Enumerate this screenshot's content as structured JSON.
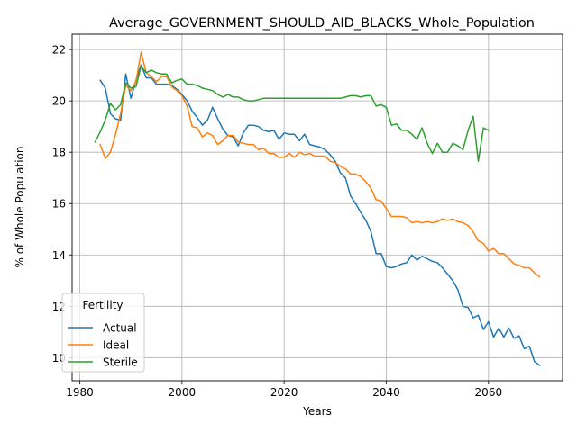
{
  "chart_data": {
    "type": "line",
    "title": "Average_GOVERNMENT_SHOULD_AID_BLACKS_Whole_Population",
    "xlabel": "Years",
    "ylabel": "% of Whole Population",
    "xlim": [
      1978.5,
      2074.5
    ],
    "ylim": [
      9.1,
      22.6
    ],
    "xticks": [
      1980,
      2000,
      2020,
      2040,
      2060
    ],
    "yticks": [
      10,
      12,
      14,
      16,
      18,
      20,
      22
    ],
    "grid": true,
    "legend": {
      "title": "Fertility",
      "placement": "lower-left"
    },
    "series": [
      {
        "name": "Actual",
        "color": "#1f77b4",
        "points": [
          [
            1984,
            20.8
          ],
          [
            1985,
            20.5
          ],
          [
            1986,
            19.5
          ],
          [
            1987,
            19.3
          ],
          [
            1988,
            19.25
          ],
          [
            1989,
            21.05
          ],
          [
            1990,
            20.1
          ],
          [
            1991,
            20.8
          ],
          [
            1992,
            21.4
          ],
          [
            1993,
            20.9
          ],
          [
            1994,
            20.9
          ],
          [
            1995,
            20.65
          ],
          [
            1996,
            20.65
          ],
          [
            1997,
            20.65
          ],
          [
            1998,
            20.6
          ],
          [
            1999,
            20.45
          ],
          [
            2000,
            20.25
          ],
          [
            2001,
            20.0
          ],
          [
            2002,
            19.6
          ],
          [
            2003,
            19.35
          ],
          [
            2004,
            19.05
          ],
          [
            2005,
            19.25
          ],
          [
            2006,
            19.75
          ],
          [
            2007,
            19.3
          ],
          [
            2008,
            18.9
          ],
          [
            2009,
            18.65
          ],
          [
            2010,
            18.6
          ],
          [
            2011,
            18.25
          ],
          [
            2012,
            18.75
          ],
          [
            2013,
            19.05
          ],
          [
            2014,
            19.05
          ],
          [
            2015,
            19.0
          ],
          [
            2016,
            18.85
          ],
          [
            2017,
            18.8
          ],
          [
            2018,
            18.85
          ],
          [
            2019,
            18.5
          ],
          [
            2020,
            18.75
          ],
          [
            2021,
            18.7
          ],
          [
            2022,
            18.7
          ],
          [
            2023,
            18.45
          ],
          [
            2024,
            18.7
          ],
          [
            2025,
            18.3
          ],
          [
            2026,
            18.25
          ],
          [
            2027,
            18.2
          ],
          [
            2028,
            18.1
          ],
          [
            2029,
            17.9
          ],
          [
            2030,
            17.65
          ],
          [
            2031,
            17.2
          ],
          [
            2032,
            17.0
          ],
          [
            2033,
            16.3
          ],
          [
            2034,
            16.0
          ],
          [
            2035,
            15.65
          ],
          [
            2036,
            15.35
          ],
          [
            2037,
            14.9
          ],
          [
            2038,
            14.05
          ],
          [
            2039,
            14.05
          ],
          [
            2040,
            13.55
          ],
          [
            2041,
            13.5
          ],
          [
            2042,
            13.55
          ],
          [
            2043,
            13.65
          ],
          [
            2044,
            13.7
          ],
          [
            2045,
            14.0
          ],
          [
            2046,
            13.8
          ],
          [
            2047,
            13.95
          ],
          [
            2048,
            13.85
          ],
          [
            2049,
            13.75
          ],
          [
            2050,
            13.7
          ],
          [
            2051,
            13.5
          ],
          [
            2052,
            13.25
          ],
          [
            2053,
            13.0
          ],
          [
            2054,
            12.65
          ],
          [
            2055,
            12.0
          ],
          [
            2056,
            11.95
          ],
          [
            2057,
            11.55
          ],
          [
            2058,
            11.65
          ],
          [
            2059,
            11.1
          ],
          [
            2060,
            11.4
          ],
          [
            2061,
            10.8
          ],
          [
            2062,
            11.15
          ],
          [
            2063,
            10.8
          ],
          [
            2064,
            11.15
          ],
          [
            2065,
            10.75
          ],
          [
            2066,
            10.85
          ],
          [
            2067,
            10.35
          ],
          [
            2068,
            10.45
          ],
          [
            2069,
            9.85
          ],
          [
            2070,
            9.7
          ]
        ]
      },
      {
        "name": "Ideal",
        "color": "#ff7f0e",
        "points": [
          [
            1984,
            18.3
          ],
          [
            1985,
            17.75
          ],
          [
            1986,
            18.0
          ],
          [
            1987,
            18.7
          ],
          [
            1988,
            19.5
          ],
          [
            1989,
            20.6
          ],
          [
            1990,
            20.4
          ],
          [
            1991,
            20.75
          ],
          [
            1992,
            21.9
          ],
          [
            1993,
            21.1
          ],
          [
            1994,
            20.95
          ],
          [
            1995,
            20.75
          ],
          [
            1996,
            20.95
          ],
          [
            1997,
            20.95
          ],
          [
            1998,
            20.55
          ],
          [
            1999,
            20.4
          ],
          [
            2000,
            20.2
          ],
          [
            2001,
            19.8
          ],
          [
            2002,
            19.0
          ],
          [
            2003,
            18.95
          ],
          [
            2004,
            18.6
          ],
          [
            2005,
            18.75
          ],
          [
            2006,
            18.65
          ],
          [
            2007,
            18.3
          ],
          [
            2008,
            18.45
          ],
          [
            2009,
            18.65
          ],
          [
            2010,
            18.65
          ],
          [
            2011,
            18.4
          ],
          [
            2012,
            18.35
          ],
          [
            2013,
            18.3
          ],
          [
            2014,
            18.3
          ],
          [
            2015,
            18.1
          ],
          [
            2016,
            18.15
          ],
          [
            2017,
            17.95
          ],
          [
            2018,
            17.95
          ],
          [
            2019,
            17.8
          ],
          [
            2020,
            17.8
          ],
          [
            2021,
            17.95
          ],
          [
            2022,
            17.8
          ],
          [
            2023,
            18.0
          ],
          [
            2024,
            17.9
          ],
          [
            2025,
            17.95
          ],
          [
            2026,
            17.85
          ],
          [
            2027,
            17.85
          ],
          [
            2028,
            17.85
          ],
          [
            2029,
            17.65
          ],
          [
            2030,
            17.6
          ],
          [
            2031,
            17.45
          ],
          [
            2032,
            17.35
          ],
          [
            2033,
            17.15
          ],
          [
            2034,
            17.15
          ],
          [
            2035,
            17.05
          ],
          [
            2036,
            16.85
          ],
          [
            2037,
            16.6
          ],
          [
            2038,
            16.15
          ],
          [
            2039,
            16.1
          ],
          [
            2040,
            15.8
          ],
          [
            2041,
            15.5
          ],
          [
            2042,
            15.5
          ],
          [
            2043,
            15.5
          ],
          [
            2044,
            15.45
          ],
          [
            2045,
            15.25
          ],
          [
            2046,
            15.3
          ],
          [
            2047,
            15.25
          ],
          [
            2048,
            15.3
          ],
          [
            2049,
            15.25
          ],
          [
            2050,
            15.3
          ],
          [
            2051,
            15.4
          ],
          [
            2052,
            15.35
          ],
          [
            2053,
            15.4
          ],
          [
            2054,
            15.3
          ],
          [
            2055,
            15.25
          ],
          [
            2056,
            15.15
          ],
          [
            2057,
            14.9
          ],
          [
            2058,
            14.55
          ],
          [
            2059,
            14.45
          ],
          [
            2060,
            14.15
          ],
          [
            2061,
            14.25
          ],
          [
            2062,
            14.05
          ],
          [
            2063,
            14.05
          ],
          [
            2064,
            13.85
          ],
          [
            2065,
            13.65
          ],
          [
            2066,
            13.6
          ],
          [
            2067,
            13.5
          ],
          [
            2068,
            13.5
          ],
          [
            2069,
            13.3
          ],
          [
            2070,
            13.15
          ]
        ]
      },
      {
        "name": "Sterile",
        "color": "#2ca02c",
        "points": [
          [
            1983,
            18.4
          ],
          [
            1984,
            18.8
          ],
          [
            1985,
            19.25
          ],
          [
            1986,
            19.9
          ],
          [
            1987,
            19.65
          ],
          [
            1988,
            19.85
          ],
          [
            1989,
            20.7
          ],
          [
            1990,
            20.5
          ],
          [
            1991,
            20.55
          ],
          [
            1992,
            21.35
          ],
          [
            1993,
            21.1
          ],
          [
            1994,
            21.2
          ],
          [
            1995,
            21.1
          ],
          [
            1996,
            21.05
          ],
          [
            1997,
            21.05
          ],
          [
            1998,
            20.7
          ],
          [
            1999,
            20.8
          ],
          [
            2000,
            20.85
          ],
          [
            2001,
            20.65
          ],
          [
            2002,
            20.65
          ],
          [
            2003,
            20.6
          ],
          [
            2004,
            20.5
          ],
          [
            2005,
            20.45
          ],
          [
            2006,
            20.4
          ],
          [
            2007,
            20.25
          ],
          [
            2008,
            20.15
          ],
          [
            2009,
            20.25
          ],
          [
            2010,
            20.15
          ],
          [
            2011,
            20.15
          ],
          [
            2012,
            20.05
          ],
          [
            2013,
            20.0
          ],
          [
            2014,
            20.0
          ],
          [
            2015,
            20.05
          ],
          [
            2016,
            20.1
          ],
          [
            2017,
            20.1
          ],
          [
            2018,
            20.1
          ],
          [
            2019,
            20.1
          ],
          [
            2020,
            20.1
          ],
          [
            2021,
            20.1
          ],
          [
            2022,
            20.1
          ],
          [
            2023,
            20.1
          ],
          [
            2024,
            20.1
          ],
          [
            2025,
            20.1
          ],
          [
            2026,
            20.1
          ],
          [
            2027,
            20.1
          ],
          [
            2028,
            20.1
          ],
          [
            2029,
            20.1
          ],
          [
            2030,
            20.1
          ],
          [
            2031,
            20.1
          ],
          [
            2032,
            20.15
          ],
          [
            2033,
            20.2
          ],
          [
            2034,
            20.2
          ],
          [
            2035,
            20.15
          ],
          [
            2036,
            20.2
          ],
          [
            2037,
            20.2
          ],
          [
            2038,
            19.8
          ],
          [
            2039,
            19.85
          ],
          [
            2040,
            19.75
          ],
          [
            2041,
            19.05
          ],
          [
            2042,
            19.1
          ],
          [
            2043,
            18.85
          ],
          [
            2044,
            18.85
          ],
          [
            2045,
            18.7
          ],
          [
            2046,
            18.5
          ],
          [
            2047,
            18.95
          ],
          [
            2048,
            18.35
          ],
          [
            2049,
            17.95
          ],
          [
            2050,
            18.35
          ],
          [
            2051,
            18.0
          ],
          [
            2052,
            18.0
          ],
          [
            2053,
            18.35
          ],
          [
            2054,
            18.25
          ],
          [
            2055,
            18.1
          ],
          [
            2056,
            18.85
          ],
          [
            2057,
            19.4
          ],
          [
            2058,
            17.65
          ],
          [
            2059,
            18.95
          ],
          [
            2060,
            18.85
          ]
        ]
      }
    ]
  }
}
